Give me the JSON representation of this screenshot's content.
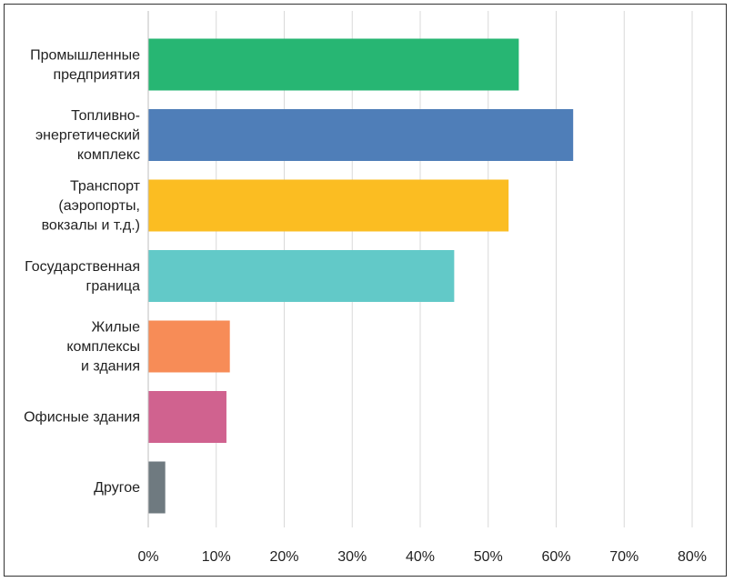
{
  "chart_data": {
    "type": "bar",
    "orientation": "horizontal",
    "categories": [
      [
        "Промышленные",
        "предприятия"
      ],
      [
        "Топливно-",
        "энергетический",
        "комплекс"
      ],
      [
        "Транспорт",
        "(аэропорты,",
        "вокзалы и т.д.)"
      ],
      [
        "Государственная",
        "граница"
      ],
      [
        "Жилые",
        "комплексы",
        "и здания"
      ],
      [
        "Офисные здания"
      ],
      [
        "Другое"
      ]
    ],
    "values": [
      54.5,
      62.5,
      53.0,
      45.0,
      12.0,
      11.5,
      2.5
    ],
    "colors": [
      "#27b673",
      "#4f7eb8",
      "#fbbd22",
      "#62c9c8",
      "#f78c57",
      "#d0628f",
      "#6f7a80"
    ],
    "xlim": [
      0,
      80
    ],
    "x_ticks": [
      0,
      10,
      20,
      30,
      40,
      50,
      60,
      70,
      80
    ],
    "tick_format": "percent",
    "grid": "vertical",
    "legend": "none",
    "title": "",
    "xlabel": "",
    "ylabel": ""
  }
}
